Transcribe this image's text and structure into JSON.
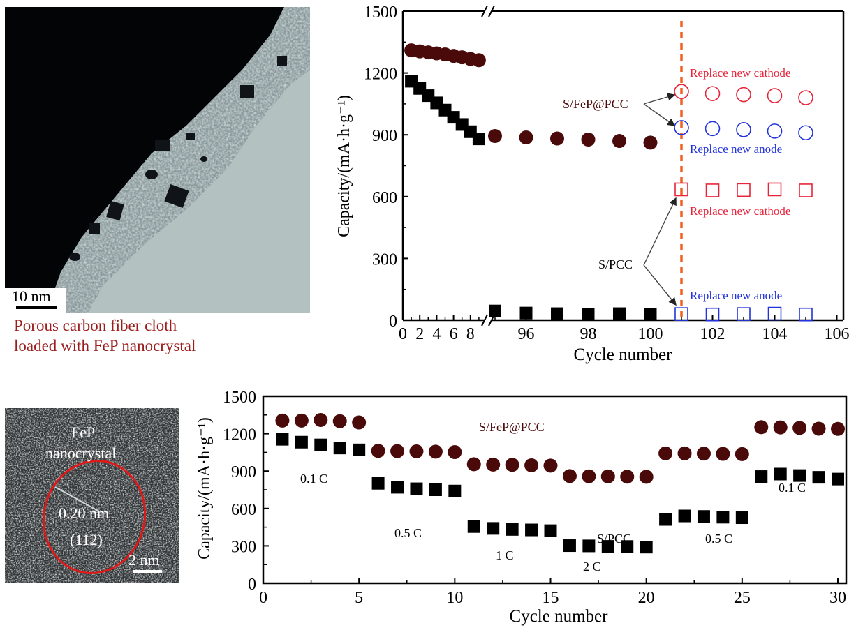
{
  "figure": {
    "tem_image": {
      "scale_bar": "10 nm",
      "caption_lines": [
        "Porous carbon fiber cloth",
        "loaded with FeP nanocrystal"
      ]
    },
    "hrtem_image": {
      "label_lines": [
        "FeP",
        "nanocrystal"
      ],
      "d_spacing": "0.20 nm",
      "plane": "(112)",
      "scale_bar": "2 nm"
    }
  },
  "colors": {
    "sfep_marker": "#4a0a0a",
    "spcc_marker": "#000000",
    "replace_cathode": "#e8233a",
    "replace_anode": "#2233dd",
    "divider_line": "#f06020",
    "caption": "#9b1c1c"
  },
  "chart_data": [
    {
      "type": "scatter",
      "title": "",
      "xlabel": "Cycle number",
      "ylabel": "Capacity/(mA·h·g⁻¹)",
      "ylim": [
        0,
        1500
      ],
      "yticks": [
        0,
        300,
        600,
        900,
        1200,
        1500
      ],
      "x_broken": true,
      "x_segments": [
        {
          "range": [
            0,
            9.5
          ],
          "ticks": [
            0,
            2,
            4,
            6,
            8
          ]
        },
        {
          "range": [
            95,
            106
          ],
          "ticks": [
            96,
            98,
            100,
            102,
            104,
            106
          ]
        }
      ],
      "series": [
        {
          "name": "S/FeP@PCC",
          "marker": "filled-circle",
          "x": [
            1,
            2,
            3,
            4,
            5,
            6,
            7,
            8,
            9,
            95,
            96,
            97,
            98,
            99,
            100
          ],
          "y": [
            1310,
            1305,
            1300,
            1295,
            1290,
            1283,
            1276,
            1268,
            1262,
            894,
            887,
            882,
            877,
            870,
            862
          ]
        },
        {
          "name": "S/PCC",
          "marker": "filled-square",
          "x": [
            1,
            2,
            3,
            4,
            5,
            6,
            7,
            8,
            9,
            95,
            96,
            97,
            98,
            99,
            100
          ],
          "y": [
            1160,
            1125,
            1090,
            1055,
            1020,
            985,
            950,
            915,
            880,
            45,
            35,
            32,
            30,
            32,
            30
          ]
        },
        {
          "name": "S/FeP@PCC - Replace new cathode",
          "marker": "open-circle",
          "color": "#e8233a",
          "x": [
            101,
            102,
            103,
            104,
            105
          ],
          "y": [
            1110,
            1100,
            1095,
            1090,
            1080
          ]
        },
        {
          "name": "S/FeP@PCC - Replace new anode",
          "marker": "open-circle",
          "color": "#2233dd",
          "x": [
            101,
            102,
            103,
            104,
            105
          ],
          "y": [
            935,
            930,
            925,
            918,
            910
          ]
        },
        {
          "name": "S/PCC - Replace new cathode",
          "marker": "open-square",
          "color": "#e8233a",
          "x": [
            101,
            102,
            103,
            104,
            105
          ],
          "y": [
            635,
            630,
            632,
            635,
            630
          ]
        },
        {
          "name": "S/PCC - Replace new anode",
          "marker": "open-square",
          "color": "#2233dd",
          "x": [
            101,
            102,
            103,
            104,
            105
          ],
          "y": [
            30,
            28,
            30,
            32,
            28
          ]
        }
      ],
      "vline": {
        "x": 101,
        "style": "dashed"
      },
      "annotations": [
        {
          "text": "Replace new cathode",
          "color": "#e8233a",
          "near": "S/FeP@PCC cathode"
        },
        {
          "text": "Replace new anode",
          "color": "#2233dd",
          "near": "S/FeP@PCC anode"
        },
        {
          "text": "Replace new cathode",
          "color": "#e8233a",
          "near": "S/PCC cathode"
        },
        {
          "text": "Replace new anode",
          "color": "#2233dd",
          "near": "S/PCC anode"
        },
        {
          "text": "S/FeP@PCC",
          "color": "#4a0a0a"
        },
        {
          "text": "S/PCC",
          "color": "#000000"
        }
      ]
    },
    {
      "type": "scatter",
      "title": "",
      "xlabel": "Cycle number",
      "ylabel": "Capacity/(mA·h·g⁻¹)",
      "xlim": [
        0,
        30
      ],
      "ylim": [
        0,
        1500
      ],
      "xticks": [
        0,
        5,
        10,
        15,
        20,
        25,
        30
      ],
      "yticks": [
        0,
        300,
        600,
        900,
        1200,
        1500
      ],
      "series": [
        {
          "name": "S/FeP@PCC",
          "marker": "filled-circle",
          "x": [
            1,
            2,
            3,
            4,
            5,
            6,
            7,
            8,
            9,
            10,
            11,
            12,
            13,
            14,
            15,
            16,
            17,
            18,
            19,
            20,
            21,
            22,
            23,
            24,
            25,
            26,
            27,
            28,
            29,
            30
          ],
          "y": [
            1305,
            1305,
            1310,
            1300,
            1290,
            1062,
            1060,
            1058,
            1056,
            1052,
            955,
            952,
            950,
            946,
            944,
            860,
            858,
            857,
            855,
            854,
            1042,
            1042,
            1040,
            1038,
            1036,
            1252,
            1250,
            1246,
            1240,
            1238
          ]
        },
        {
          "name": "S/PCC",
          "marker": "filled-square",
          "x": [
            1,
            2,
            3,
            4,
            5,
            6,
            7,
            8,
            9,
            10,
            11,
            12,
            13,
            14,
            15,
            16,
            17,
            18,
            19,
            20,
            21,
            22,
            23,
            24,
            25,
            26,
            27,
            28,
            29,
            30
          ],
          "y": [
            1155,
            1132,
            1110,
            1085,
            1070,
            802,
            770,
            758,
            750,
            740,
            455,
            440,
            432,
            428,
            422,
            302,
            300,
            296,
            295,
            290,
            512,
            540,
            536,
            530,
            526,
            856,
            876,
            864,
            850,
            836
          ]
        }
      ],
      "annotations": [
        {
          "text": "S/FeP@PCC",
          "color": "#4a0a0a"
        },
        {
          "text": "S/PCC",
          "color": "#000000"
        },
        {
          "text": "0.1 C"
        },
        {
          "text": "0.5 C"
        },
        {
          "text": "1 C"
        },
        {
          "text": "2 C"
        },
        {
          "text": "0.5 C"
        },
        {
          "text": "0.1 C"
        }
      ]
    }
  ]
}
